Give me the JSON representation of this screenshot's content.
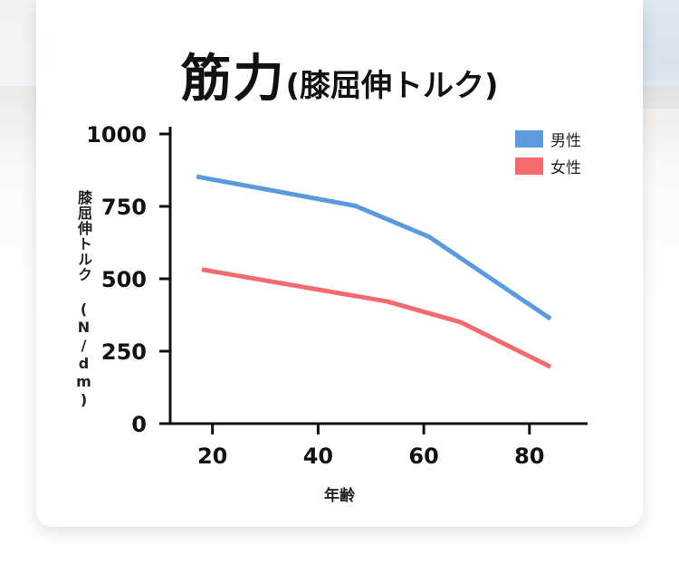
{
  "title": {
    "main": "筋力",
    "sub": "(膝屈伸トルク)"
  },
  "chart_data": {
    "type": "line",
    "title": "筋力(膝屈伸トルク)",
    "xlabel": "年齢",
    "ylabel": "膝屈伸トルク (N/dm)",
    "xlim": [
      12,
      91
    ],
    "ylim": [
      0,
      1000
    ],
    "xticks": [
      20,
      40,
      60,
      80
    ],
    "yticks": [
      0,
      250,
      500,
      750,
      1000
    ],
    "grid": false,
    "legend": "top-right",
    "series": [
      {
        "name": "男性",
        "color": "#5b9bdc",
        "x": [
          17,
          47,
          61,
          84
        ],
        "y": [
          853,
          752,
          645,
          362
        ]
      },
      {
        "name": "女性",
        "color": "#f26b6e",
        "x": [
          18,
          53,
          67,
          84
        ],
        "y": [
          532,
          422,
          350,
          196
        ]
      }
    ]
  }
}
